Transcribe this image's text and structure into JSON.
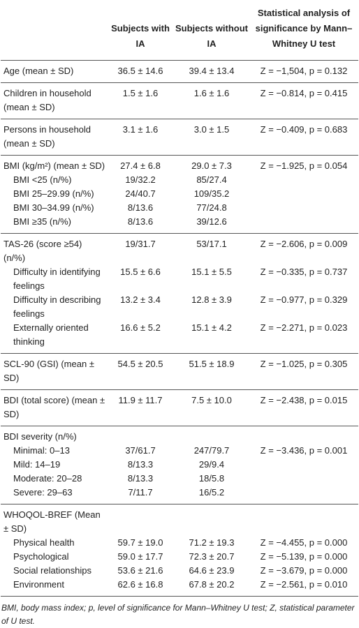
{
  "header": {
    "with_ia": "Subjects with IA",
    "without_ia": "Subjects without IA",
    "stat": "Statistical analysis of significance by Mann–Whitney U test"
  },
  "groups": [
    {
      "rows": [
        {
          "label": "Age (mean ± SD)",
          "with_ia": "36.5 ± 14.6",
          "without_ia": "39.4 ± 13.4",
          "stat": "Z = −1,504, p = 0.132"
        }
      ]
    },
    {
      "rows": [
        {
          "label": "Children in household (mean ± SD)",
          "with_ia": "1.5 ± 1.6",
          "without_ia": "1.6 ± 1.6",
          "stat": "Z = −0.814, p = 0.415"
        }
      ]
    },
    {
      "rows": [
        {
          "label": "Persons in household (mean ± SD)",
          "with_ia": "3.1 ± 1.6",
          "without_ia": "3.0 ± 1.5",
          "stat": "Z = −0.409, p = 0.683"
        }
      ]
    },
    {
      "rows": [
        {
          "label": "BMI (kg/m²) (mean ± SD)",
          "with_ia": "27.4 ± 6.8",
          "without_ia": "29.0 ± 7.3",
          "stat": "Z = −1.925, p = 0.054"
        },
        {
          "label": "BMI <25 (n/%)",
          "sub": true,
          "with_ia": "19/32.2",
          "without_ia": "85/27.4"
        },
        {
          "label": "BMI 25–29.99 (n/%)",
          "sub": true,
          "with_ia": "24/40.7",
          "without_ia": "109/35.2"
        },
        {
          "label": "BMI 30–34.99 (n/%)",
          "sub": true,
          "with_ia": "8/13.6",
          "without_ia": "77/24.8"
        },
        {
          "label": "BMI ≥35 (n/%)",
          "sub": true,
          "with_ia": "8/13.6",
          "without_ia": "39/12.6"
        }
      ]
    },
    {
      "rows": [
        {
          "label": "TAS-26 (score ≥54) (n/%)",
          "with_ia": "19/31.7",
          "without_ia": "53/17.1",
          "stat": "Z = −2.606, p = 0.009"
        },
        {
          "label": "Difficulty in identifying feelings",
          "sub": true,
          "with_ia": "15.5 ± 6.6",
          "without_ia": "15.1 ± 5.5",
          "stat": "Z = −0.335, p = 0.737"
        },
        {
          "label": "Difficulty in describing feelings",
          "sub": true,
          "with_ia": "13.2 ± 3.4",
          "without_ia": "12.8 ± 3.9",
          "stat": "Z = −0.977, p = 0.329"
        },
        {
          "label": "Externally oriented thinking",
          "sub": true,
          "with_ia": "16.6 ± 5.2",
          "without_ia": "15.1 ± 4.2",
          "stat": "Z = −2.271, p = 0.023"
        }
      ]
    },
    {
      "rows": [
        {
          "label": "SCL-90 (GSI) (mean ± SD)",
          "with_ia": "54.5 ± 20.5",
          "without_ia": "51.5 ± 18.9",
          "stat": "Z = −1.025, p = 0.305"
        }
      ]
    },
    {
      "rows": [
        {
          "label": "BDI (total score) (mean ± SD)",
          "with_ia": "11.9 ± 11.7",
          "without_ia": "7.5 ± 10.0",
          "stat": "Z = −2.438, p = 0.015"
        }
      ]
    },
    {
      "rows": [
        {
          "label": "BDI severity (n/%)"
        },
        {
          "label": "Minimal: 0–13",
          "sub": true,
          "with_ia": "37/61.7",
          "without_ia": "247/79.7",
          "stat": "Z = −3.436, p = 0.001"
        },
        {
          "label": "Mild: 14–19",
          "sub": true,
          "with_ia": "8/13.3",
          "without_ia": "29/9.4"
        },
        {
          "label": "Moderate: 20–28",
          "sub": true,
          "with_ia": "8/13.3",
          "without_ia": "18/5.8"
        },
        {
          "label": "Severe: 29–63",
          "sub": true,
          "with_ia": "7/11.7",
          "without_ia": "16/5.2"
        }
      ]
    },
    {
      "rows": [
        {
          "label": "WHOQOL-BREF (Mean ± SD)"
        },
        {
          "label": "Physical health",
          "sub": true,
          "with_ia": "59.7 ± 19.0",
          "without_ia": "71.2 ± 19.3",
          "stat": "Z = −4.455, p = 0.000"
        },
        {
          "label": "Psychological",
          "sub": true,
          "with_ia": "59.0 ± 17.7",
          "without_ia": "72.3 ± 20.7",
          "stat": "Z = −5.139, p = 0.000"
        },
        {
          "label": "Social relationships",
          "sub": true,
          "with_ia": "53.6 ± 21.6",
          "without_ia": "64.6 ± 23.9",
          "stat": "Z = −3.679, p = 0.000"
        },
        {
          "label": "Environment",
          "sub": true,
          "with_ia": "62.6 ± 16.8",
          "without_ia": "67.8 ± 20.2",
          "stat": "Z = −2.561, p = 0.010"
        }
      ]
    }
  ],
  "footnote": "BMI, body mass index; p, level of significance for Mann–Whitney U test; Z, statistical parameter of U test."
}
